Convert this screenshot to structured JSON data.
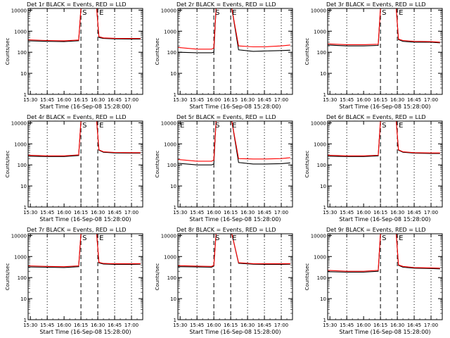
{
  "chart_data": [
    {
      "type": "line",
      "title": "Det 1r BLACK = Events, RED = LLD",
      "xlabel": "Start Time (16-Sep-08 15:28:00)",
      "ylabel": "Counts/sec",
      "x_tick_labels": [
        "15:30",
        "15:45",
        "16:00",
        "16:15",
        "16:30",
        "16:45",
        "17:00"
      ],
      "y_tick_labels": [
        "1",
        "10",
        "100",
        "1000",
        "10000"
      ],
      "ylim": [
        1,
        12000
      ],
      "yscale": "log",
      "dashed_markers": [
        "16:15",
        "16:30"
      ],
      "dotted_markers": [
        "15:45",
        "16:45",
        "17:00"
      ],
      "annotations": [
        "S",
        "E"
      ],
      "series": [
        {
          "color": "#000000",
          "x": [
            "15:28",
            "15:45",
            "16:00",
            "16:13",
            "16:15",
            "16:17",
            "16:29",
            "16:31",
            "16:35",
            "16:45",
            "17:00",
            "17:08"
          ],
          "y": [
            350,
            330,
            320,
            350,
            12000,
            12000,
            12000,
            500,
            450,
            430,
            420,
            420
          ]
        },
        {
          "color": "#ff0000",
          "x": [
            "15:28",
            "15:45",
            "16:00",
            "16:13",
            "16:15",
            "16:17",
            "16:29",
            "16:31",
            "16:35",
            "16:45",
            "17:00",
            "17:08"
          ],
          "y": [
            390,
            360,
            350,
            380,
            12000,
            12000,
            12000,
            550,
            480,
            460,
            450,
            450
          ]
        }
      ]
    },
    {
      "type": "line",
      "title": "Det 2r BLACK = Events, RED = LLD",
      "xlabel": "Start Time (16-Sep-08 15:28:00)",
      "ylabel": "Counts/sec",
      "x_tick_labels": [
        "15:30",
        "15:45",
        "16:00",
        "16:15",
        "16:30",
        "16:45",
        "17:00"
      ],
      "y_tick_labels": [
        "1",
        "10",
        "100",
        "1000",
        "10000"
      ],
      "ylim": [
        1,
        12000
      ],
      "yscale": "log",
      "dashed_markers": [
        "16:00",
        "16:15"
      ],
      "dotted_markers": [
        "15:45",
        "16:30",
        "16:45",
        "17:00"
      ],
      "annotations": [
        "S",
        "E"
      ],
      "series": [
        {
          "color": "#000000",
          "x": [
            "15:28",
            "15:45",
            "15:58",
            "16:00",
            "16:02",
            "16:14",
            "16:16",
            "16:22",
            "16:35",
            "16:45",
            "17:00",
            "17:08"
          ],
          "y": [
            100,
            95,
            95,
            100,
            12000,
            12000,
            12000,
            130,
            110,
            115,
            120,
            125
          ]
        },
        {
          "color": "#ff0000",
          "x": [
            "15:28",
            "15:45",
            "15:58",
            "16:00",
            "16:02",
            "16:14",
            "16:16",
            "16:22",
            "16:35",
            "16:45",
            "17:00",
            "17:08"
          ],
          "y": [
            170,
            140,
            140,
            160,
            12000,
            12000,
            12000,
            200,
            180,
            180,
            200,
            220
          ]
        }
      ]
    },
    {
      "type": "line",
      "title": "Det 3r BLACK = Events, RED = LLD",
      "xlabel": "Start Time (16-Sep-08 15:28:00)",
      "ylabel": "Counts/sec",
      "x_tick_labels": [
        "15:30",
        "15:45",
        "16:00",
        "16:15",
        "16:30",
        "16:45",
        "17:00"
      ],
      "y_tick_labels": [
        "1",
        "10",
        "100",
        "1000",
        "10000"
      ],
      "ylim": [
        1,
        12000
      ],
      "yscale": "log",
      "dashed_markers": [
        "16:15",
        "16:30"
      ],
      "dotted_markers": [
        "15:45",
        "16:45",
        "17:00"
      ],
      "annotations": [
        "S",
        "E"
      ],
      "series": [
        {
          "color": "#000000",
          "x": [
            "15:28",
            "15:45",
            "16:00",
            "16:13",
            "16:15",
            "16:17",
            "16:29",
            "16:31",
            "16:35",
            "16:45",
            "17:00",
            "17:08"
          ],
          "y": [
            220,
            200,
            200,
            210,
            12000,
            12000,
            12000,
            400,
            330,
            300,
            300,
            280
          ]
        },
        {
          "color": "#ff0000",
          "x": [
            "15:28",
            "15:45",
            "16:00",
            "16:13",
            "16:15",
            "16:17",
            "16:29",
            "16:31",
            "16:35",
            "16:45",
            "17:00",
            "17:08"
          ],
          "y": [
            250,
            230,
            230,
            240,
            12000,
            12000,
            12000,
            420,
            360,
            330,
            320,
            300
          ]
        }
      ]
    },
    {
      "type": "line",
      "title": "Det 4r BLACK = Events, RED = LLD",
      "xlabel": "Start Time (16-Sep-08 15:28:00)",
      "ylabel": "Counts/sec",
      "x_tick_labels": [
        "15:30",
        "15:45",
        "16:00",
        "16:15",
        "16:30",
        "16:45",
        "17:00"
      ],
      "y_tick_labels": [
        "1",
        "10",
        "100",
        "1000",
        "10000"
      ],
      "ylim": [
        1,
        12000
      ],
      "yscale": "log",
      "dashed_markers": [
        "16:15",
        "16:30"
      ],
      "dotted_markers": [
        "15:45",
        "16:45",
        "17:00"
      ],
      "annotations": [
        "S",
        "E"
      ],
      "series": [
        {
          "color": "#000000",
          "x": [
            "15:28",
            "15:45",
            "16:00",
            "16:13",
            "16:15",
            "16:17",
            "16:29",
            "16:31",
            "16:35",
            "16:45",
            "17:00",
            "17:08"
          ],
          "y": [
            260,
            250,
            250,
            280,
            12000,
            12000,
            12000,
            500,
            400,
            370,
            360,
            360
          ]
        },
        {
          "color": "#ff0000",
          "x": [
            "15:28",
            "15:45",
            "16:00",
            "16:13",
            "16:15",
            "16:17",
            "16:29",
            "16:31",
            "16:35",
            "16:45",
            "17:00",
            "17:08"
          ],
          "y": [
            290,
            270,
            270,
            300,
            12000,
            12000,
            12000,
            520,
            420,
            390,
            380,
            380
          ]
        }
      ]
    },
    {
      "type": "line",
      "title": "Det 5r BLACK = Events, RED = LLD",
      "xlabel": "Start Time (16-Sep-08 15:28:00)",
      "ylabel": "Counts/sec",
      "x_tick_labels": [
        "15:30",
        "15:45",
        "16:00",
        "16:15",
        "16:30",
        "16:45",
        "17:00"
      ],
      "y_tick_labels": [
        "1",
        "10",
        "100",
        "1000",
        "10000"
      ],
      "ylim": [
        1,
        12000
      ],
      "yscale": "log",
      "dashed_markers": [
        "16:00",
        "16:15"
      ],
      "dotted_markers": [
        "15:45",
        "16:30",
        "16:45",
        "17:00"
      ],
      "annotations": [
        "E",
        "S",
        "E"
      ],
      "series": [
        {
          "color": "#000000",
          "x": [
            "15:28",
            "15:45",
            "15:58",
            "16:00",
            "16:02",
            "16:14",
            "16:16",
            "16:22",
            "16:35",
            "16:45",
            "17:00",
            "17:08"
          ],
          "y": [
            120,
            100,
            100,
            110,
            12000,
            12000,
            12000,
            130,
            110,
            110,
            115,
            125
          ]
        },
        {
          "color": "#ff0000",
          "x": [
            "15:28",
            "15:45",
            "15:58",
            "16:00",
            "16:02",
            "16:14",
            "16:16",
            "16:22",
            "16:35",
            "16:45",
            "17:00",
            "17:08"
          ],
          "y": [
            180,
            150,
            150,
            170,
            12000,
            12000,
            12000,
            200,
            190,
            190,
            200,
            220
          ]
        }
      ]
    },
    {
      "type": "line",
      "title": "Det 6r BLACK = Events, RED = LLD",
      "xlabel": "Start Time (16-Sep-08 15:28:00)",
      "ylabel": "Counts/sec",
      "x_tick_labels": [
        "15:30",
        "15:45",
        "16:00",
        "16:15",
        "16:30",
        "16:45",
        "17:00"
      ],
      "y_tick_labels": [
        "1",
        "10",
        "100",
        "1000",
        "10000"
      ],
      "ylim": [
        1,
        12000
      ],
      "yscale": "log",
      "dashed_markers": [
        "16:15",
        "16:30"
      ],
      "dotted_markers": [
        "15:45",
        "16:45",
        "17:00"
      ],
      "annotations": [
        "S",
        "E"
      ],
      "series": [
        {
          "color": "#000000",
          "x": [
            "15:28",
            "15:45",
            "16:00",
            "16:13",
            "16:15",
            "16:17",
            "16:29",
            "16:31",
            "16:35",
            "16:45",
            "17:00",
            "17:08"
          ],
          "y": [
            260,
            250,
            250,
            270,
            12000,
            12000,
            12000,
            500,
            400,
            360,
            350,
            350
          ]
        },
        {
          "color": "#ff0000",
          "x": [
            "15:28",
            "15:45",
            "16:00",
            "16:13",
            "16:15",
            "16:17",
            "16:29",
            "16:31",
            "16:35",
            "16:45",
            "17:00",
            "17:08"
          ],
          "y": [
            290,
            270,
            270,
            290,
            12000,
            12000,
            12000,
            520,
            420,
            380,
            370,
            370
          ]
        }
      ]
    },
    {
      "type": "line",
      "title": "Det 7r BLACK = Events, RED = LLD",
      "xlabel": "Start Time (16-Sep-08 15:28:00)",
      "ylabel": "Counts/sec",
      "x_tick_labels": [
        "15:30",
        "15:45",
        "16:00",
        "16:15",
        "16:30",
        "16:45",
        "17:00"
      ],
      "y_tick_labels": [
        "1",
        "10",
        "100",
        "1000",
        "10000"
      ],
      "ylim": [
        1,
        12000
      ],
      "yscale": "log",
      "dashed_markers": [
        "16:15",
        "16:30"
      ],
      "dotted_markers": [
        "15:45",
        "16:45",
        "17:00"
      ],
      "annotations": [
        "S",
        "E"
      ],
      "series": [
        {
          "color": "#000000",
          "x": [
            "15:28",
            "15:45",
            "16:00",
            "16:13",
            "16:15",
            "16:17",
            "16:29",
            "16:31",
            "16:35",
            "16:45",
            "17:00",
            "17:08"
          ],
          "y": [
            320,
            310,
            300,
            330,
            12000,
            12000,
            12000,
            500,
            440,
            420,
            420,
            430
          ]
        },
        {
          "color": "#ff0000",
          "x": [
            "15:28",
            "15:45",
            "16:00",
            "16:13",
            "16:15",
            "16:17",
            "16:29",
            "16:31",
            "16:35",
            "16:45",
            "17:00",
            "17:08"
          ],
          "y": [
            360,
            340,
            330,
            360,
            12000,
            12000,
            12000,
            530,
            470,
            450,
            450,
            460
          ]
        }
      ]
    },
    {
      "type": "line",
      "title": "Det 8r BLACK = Events, RED = LLD",
      "xlabel": "Start Time (16-Sep-08 15:28:00)",
      "ylabel": "Counts/sec",
      "x_tick_labels": [
        "15:30",
        "15:45",
        "16:00",
        "16:15",
        "16:30",
        "16:45",
        "17:00"
      ],
      "y_tick_labels": [
        "1",
        "10",
        "100",
        "1000",
        "10000"
      ],
      "ylim": [
        1,
        12000
      ],
      "yscale": "log",
      "dashed_markers": [
        "16:00",
        "16:15"
      ],
      "dotted_markers": [
        "15:45",
        "16:30",
        "16:45",
        "17:00"
      ],
      "annotations": [
        "S",
        "E"
      ],
      "series": [
        {
          "color": "#000000",
          "x": [
            "15:28",
            "15:45",
            "15:58",
            "16:00",
            "16:02",
            "16:14",
            "16:16",
            "16:22",
            "16:35",
            "16:45",
            "17:00",
            "17:08"
          ],
          "y": [
            330,
            320,
            310,
            350,
            12000,
            12000,
            12000,
            480,
            430,
            420,
            420,
            430
          ]
        },
        {
          "color": "#ff0000",
          "x": [
            "15:28",
            "15:45",
            "15:58",
            "16:00",
            "16:02",
            "16:14",
            "16:16",
            "16:22",
            "16:35",
            "16:45",
            "17:00",
            "17:08"
          ],
          "y": [
            370,
            350,
            340,
            380,
            12000,
            12000,
            12000,
            510,
            460,
            450,
            450,
            460
          ]
        }
      ]
    },
    {
      "type": "line",
      "title": "Det 9r BLACK = Events, RED = LLD",
      "xlabel": "Start Time (16-Sep-08 15:28:00)",
      "ylabel": "Counts/sec",
      "x_tick_labels": [
        "15:30",
        "15:45",
        "16:00",
        "16:15",
        "16:30",
        "16:45",
        "17:00"
      ],
      "y_tick_labels": [
        "1",
        "10",
        "100",
        "1000",
        "10000"
      ],
      "ylim": [
        1,
        12000
      ],
      "yscale": "log",
      "dashed_markers": [
        "16:15",
        "16:30"
      ],
      "dotted_markers": [
        "15:45",
        "16:45",
        "17:00"
      ],
      "annotations": [
        "S",
        "E"
      ],
      "series": [
        {
          "color": "#000000",
          "x": [
            "15:28",
            "15:45",
            "16:00",
            "16:13",
            "16:15",
            "16:17",
            "16:29",
            "16:31",
            "16:35",
            "16:45",
            "17:00",
            "17:08"
          ],
          "y": [
            190,
            180,
            180,
            200,
            12000,
            12000,
            12000,
            380,
            310,
            280,
            270,
            260
          ]
        },
        {
          "color": "#ff0000",
          "x": [
            "15:28",
            "15:45",
            "16:00",
            "16:13",
            "16:15",
            "16:17",
            "16:29",
            "16:31",
            "16:35",
            "16:45",
            "17:00",
            "17:08"
          ],
          "y": [
            220,
            200,
            200,
            220,
            12000,
            12000,
            12000,
            400,
            340,
            300,
            290,
            280
          ]
        }
      ]
    }
  ]
}
